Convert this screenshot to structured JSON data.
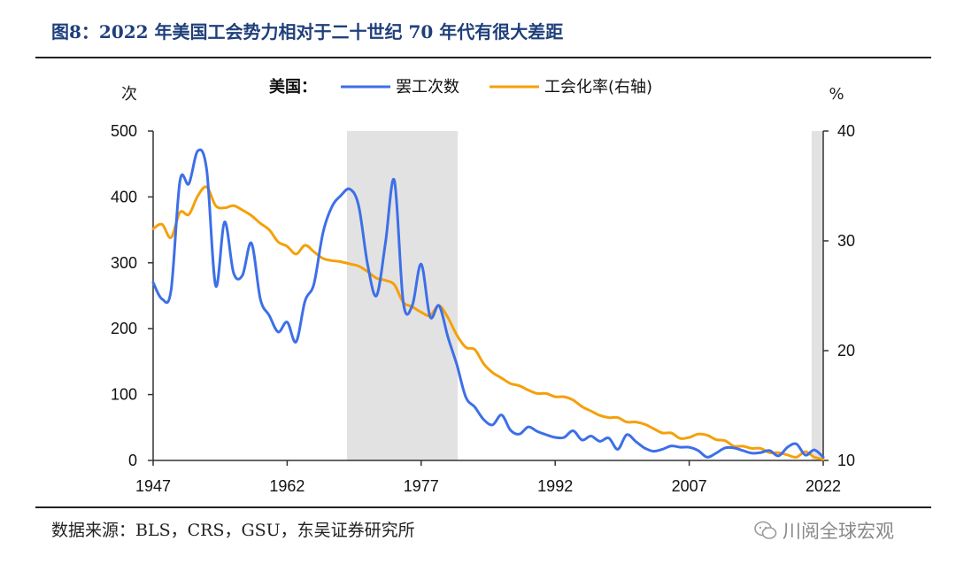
{
  "header": {
    "title": "图8：2022 年美国工会势力相对于二十世纪 70 年代有很大差距"
  },
  "footer": {
    "source": "数据来源：BLS，CRS，GSU，东吴证券研究所",
    "brand": "川阅全球宏观"
  },
  "chart_data": {
    "type": "line",
    "title": "",
    "legend_prefix": "美国：",
    "legend_position": "top",
    "left_unit": "次",
    "right_unit": "%",
    "x_ticks": [
      "1947",
      "1962",
      "1977",
      "1992",
      "2007",
      "2022"
    ],
    "x_range": [
      1947,
      2022
    ],
    "ylim_left": [
      0,
      500
    ],
    "ylim_right": [
      10,
      40
    ],
    "y_ticks_left": [
      "0",
      "100",
      "200",
      "300",
      "400",
      "500"
    ],
    "y_ticks_right": [
      "10",
      "20",
      "30",
      "40"
    ],
    "shaded_periods": [
      [
        1968.7,
        1981.1
      ],
      [
        2020.7,
        2022.5
      ]
    ],
    "series": [
      {
        "name": "罢工次数",
        "axis": "left",
        "color": "#3d6fe8",
        "x": [
          1947,
          1948,
          1949,
          1950,
          1951,
          1952,
          1953,
          1954,
          1955,
          1956,
          1957,
          1958,
          1959,
          1960,
          1961,
          1962,
          1963,
          1964,
          1965,
          1966,
          1967,
          1968,
          1969,
          1970,
          1971,
          1972,
          1973,
          1974,
          1975,
          1976,
          1977,
          1978,
          1979,
          1980,
          1981,
          1982,
          1983,
          1984,
          1985,
          1986,
          1987,
          1988,
          1989,
          1990,
          1991,
          1992,
          1993,
          1994,
          1995,
          1996,
          1997,
          1998,
          1999,
          2000,
          2001,
          2002,
          2003,
          2004,
          2005,
          2006,
          2007,
          2008,
          2009,
          2010,
          2011,
          2012,
          2013,
          2014,
          2015,
          2016,
          2017,
          2018,
          2019,
          2020,
          2021,
          2022
        ],
        "values": [
          270,
          245,
          258,
          424,
          420,
          470,
          440,
          265,
          362,
          285,
          281,
          330,
          245,
          220,
          195,
          210,
          180,
          242,
          268,
          345,
          385,
          402,
          412,
          387,
          298,
          250,
          330,
          425,
          240,
          235,
          298,
          218,
          235,
          187,
          145,
          96,
          81,
          62,
          54,
          69,
          46,
          40,
          51,
          44,
          39,
          35,
          35,
          45,
          31,
          37,
          29,
          34,
          17,
          39,
          29,
          19,
          14,
          17,
          22,
          20,
          20,
          15,
          5,
          11,
          19,
          19,
          15,
          11,
          12,
          15,
          7,
          20,
          25,
          8,
          16,
          5
        ]
      },
      {
        "name": "工会化率(右轴)",
        "axis": "right",
        "color": "#f5a00b",
        "x": [
          1947,
          1948,
          1949,
          1950,
          1951,
          1952,
          1953,
          1954,
          1955,
          1956,
          1957,
          1958,
          1959,
          1960,
          1961,
          1962,
          1963,
          1964,
          1965,
          1966,
          1967,
          1968,
          1969,
          1970,
          1971,
          1972,
          1973,
          1974,
          1975,
          1976,
          1977,
          1978,
          1979,
          1980,
          1981,
          1982,
          1983,
          1984,
          1985,
          1986,
          1987,
          1988,
          1989,
          1990,
          1991,
          1992,
          1993,
          1994,
          1995,
          1996,
          1997,
          1998,
          1999,
          2000,
          2001,
          2002,
          2003,
          2004,
          2005,
          2006,
          2007,
          2008,
          2009,
          2010,
          2011,
          2012,
          2013,
          2014,
          2015,
          2016,
          2017,
          2018,
          2019,
          2020,
          2021,
          2022
        ],
        "values": [
          31.1,
          31.5,
          30.3,
          32.6,
          32.4,
          34.1,
          34.9,
          33.2,
          33.0,
          33.2,
          32.8,
          32.3,
          31.6,
          31.0,
          29.9,
          29.5,
          28.8,
          29.6,
          29.0,
          28.4,
          28.2,
          28.1,
          27.9,
          27.7,
          27.2,
          26.6,
          26.4,
          26.0,
          24.4,
          24.0,
          23.5,
          23.2,
          24.1,
          23.0,
          21.4,
          20.3,
          20.1,
          18.8,
          18.0,
          17.5,
          17.0,
          16.8,
          16.4,
          16.1,
          16.1,
          15.8,
          15.8,
          15.5,
          14.9,
          14.5,
          14.1,
          13.9,
          13.9,
          13.5,
          13.5,
          13.3,
          12.9,
          12.5,
          12.5,
          12.0,
          12.1,
          12.4,
          12.3,
          11.9,
          11.8,
          11.3,
          11.3,
          11.1,
          11.1,
          10.7,
          10.7,
          10.5,
          10.3,
          10.8,
          10.3,
          10.1
        ]
      }
    ]
  }
}
